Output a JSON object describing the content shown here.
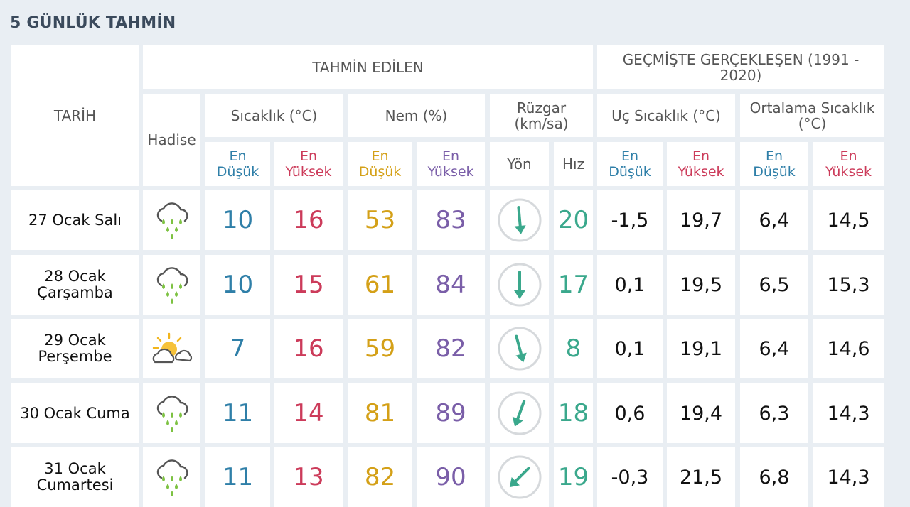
{
  "title": "5 GÜNLÜK TAHMİN",
  "headers": {
    "date": "TARİH",
    "forecast": "TAHMİN EDİLEN",
    "historical": "GEÇMİŞTE GERÇEKLEŞEN (1991 - 2020)",
    "event": "Hadise",
    "temperature": "Sıcaklık (°C)",
    "humidity": "Nem (%)",
    "wind": "Rüzgar (km/sa)",
    "extreme_temp": "Uç Sıcaklık (°C)",
    "avg_temp": "Ortalama Sıcaklık (°C)",
    "low": "En Düşük",
    "high": "En Yüksek",
    "direction": "Yön",
    "speed": "Hız"
  },
  "colors": {
    "low": "#2f7fa8",
    "high": "#cc3b5a",
    "humidity_low": "#d4a017",
    "humidity_high": "#7a5ea8",
    "wind": "#3aa88c"
  },
  "rows": [
    {
      "date_line1": "27 Ocak Salı",
      "date_line2": "",
      "icon": "rain-cloud-icon",
      "temp_low": "10",
      "temp_high": "16",
      "hum_low": "53",
      "hum_high": "83",
      "wind_dir_deg": 175,
      "wind_speed": "20",
      "ext_low": "-1,5",
      "ext_high": "19,7",
      "avg_low": "6,4",
      "avg_high": "14,5"
    },
    {
      "date_line1": "28 Ocak",
      "date_line2": "Çarşamba",
      "icon": "rain-cloud-icon",
      "temp_low": "10",
      "temp_high": "15",
      "hum_low": "61",
      "hum_high": "84",
      "wind_dir_deg": 180,
      "wind_speed": "17",
      "ext_low": "0,1",
      "ext_high": "19,5",
      "avg_low": "6,5",
      "avg_high": "15,3"
    },
    {
      "date_line1": "29 Ocak",
      "date_line2": "Perşembe",
      "icon": "partly-cloudy-icon",
      "temp_low": "7",
      "temp_high": "16",
      "hum_low": "59",
      "hum_high": "82",
      "wind_dir_deg": 165,
      "wind_speed": "8",
      "ext_low": "0,1",
      "ext_high": "19,1",
      "avg_low": "6,4",
      "avg_high": "14,6"
    },
    {
      "date_line1": "30 Ocak Cuma",
      "date_line2": "",
      "icon": "rain-cloud-icon",
      "temp_low": "11",
      "temp_high": "14",
      "hum_low": "81",
      "hum_high": "89",
      "wind_dir_deg": 200,
      "wind_speed": "18",
      "ext_low": "0,6",
      "ext_high": "19,4",
      "avg_low": "6,3",
      "avg_high": "14,3"
    },
    {
      "date_line1": "31 Ocak",
      "date_line2": "Cumartesi",
      "icon": "rain-cloud-icon",
      "temp_low": "11",
      "temp_high": "13",
      "hum_low": "82",
      "hum_high": "90",
      "wind_dir_deg": 225,
      "wind_speed": "19",
      "ext_low": "-0,3",
      "ext_high": "21,5",
      "avg_low": "6,8",
      "avg_high": "14,3"
    }
  ]
}
